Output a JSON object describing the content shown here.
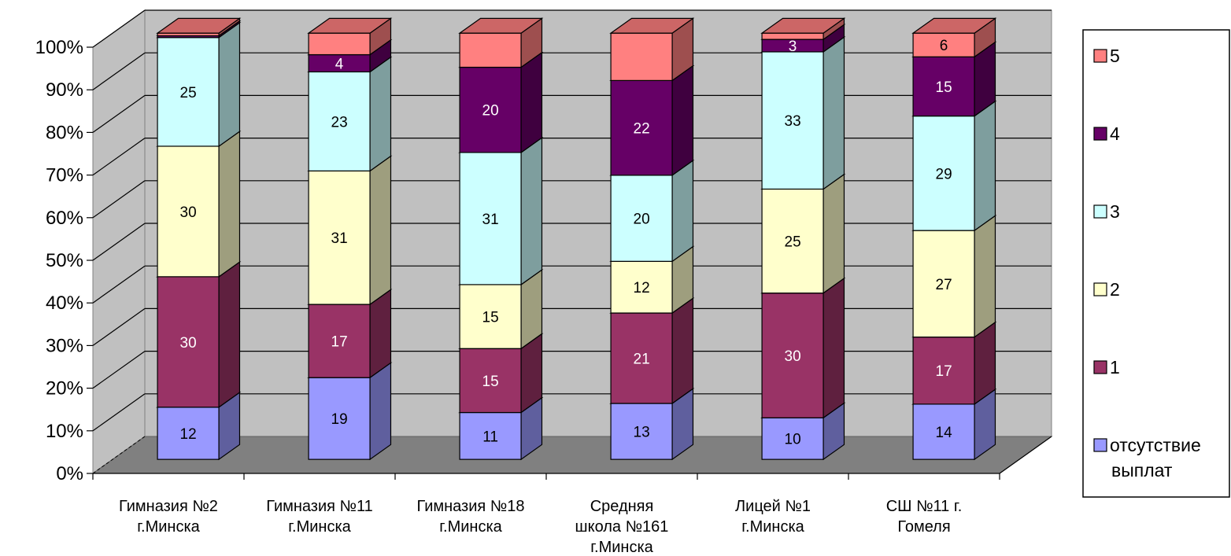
{
  "chart_data": {
    "type": "bar",
    "stacked": "percent",
    "three_d": true,
    "categories": [
      [
        "Гимназия №2",
        "г.Минска"
      ],
      [
        "Гимназия №11",
        "г.Минска"
      ],
      [
        "Гимназия №18",
        "г.Минска"
      ],
      [
        "Средняя",
        "школа №161",
        "г.Минска"
      ],
      [
        "Лицей №1",
        "г.Минска"
      ],
      [
        "СШ №11 г.",
        "Гомеля"
      ]
    ],
    "series": [
      {
        "name": [
          "отсутствие",
          "выплат"
        ],
        "color": "#9999ff",
        "values": [
          12,
          19,
          11,
          13,
          10,
          14
        ],
        "labels": [
          "12",
          "19",
          "11",
          "13",
          "10",
          "14"
        ],
        "label_color": "#000000"
      },
      {
        "name": [
          "1"
        ],
        "color": "#993366",
        "values": [
          30,
          17,
          15,
          21,
          30,
          17
        ],
        "labels": [
          "30",
          "17",
          "15",
          "21",
          "30",
          "17"
        ],
        "label_color": "#ffffff"
      },
      {
        "name": [
          "2"
        ],
        "color": "#ffffcc",
        "values": [
          30,
          31,
          15,
          12,
          25,
          27
        ],
        "labels": [
          "30",
          "31",
          "15",
          "12",
          "25",
          "27"
        ],
        "label_color": "#000000"
      },
      {
        "name": [
          "3"
        ],
        "color": "#ccffff",
        "values": [
          25,
          23,
          31,
          20,
          33,
          29
        ],
        "labels": [
          "25",
          "23",
          "31",
          "20",
          "33",
          "29"
        ],
        "label_color": "#000000"
      },
      {
        "name": [
          "4"
        ],
        "color": "#660066",
        "values": [
          0.4,
          4,
          20,
          22,
          3,
          15
        ],
        "labels": [
          "",
          "4",
          "20",
          "22",
          "3",
          "15"
        ],
        "label_color": "#ffffff"
      },
      {
        "name": [
          "5"
        ],
        "color": "#ff8080",
        "values": [
          0.6,
          5,
          8,
          11,
          1.5,
          6
        ],
        "labels": [
          "",
          "",
          "",
          "",
          "",
          "6"
        ],
        "label_color": "#000000"
      }
    ],
    "yticks": [
      "0%",
      "10%",
      "20%",
      "30%",
      "40%",
      "50%",
      "60%",
      "70%",
      "80%",
      "90%",
      "100%"
    ],
    "ylim": [
      0,
      100
    ],
    "grid": true,
    "legend_position": "right",
    "legend_order": "reverse"
  }
}
